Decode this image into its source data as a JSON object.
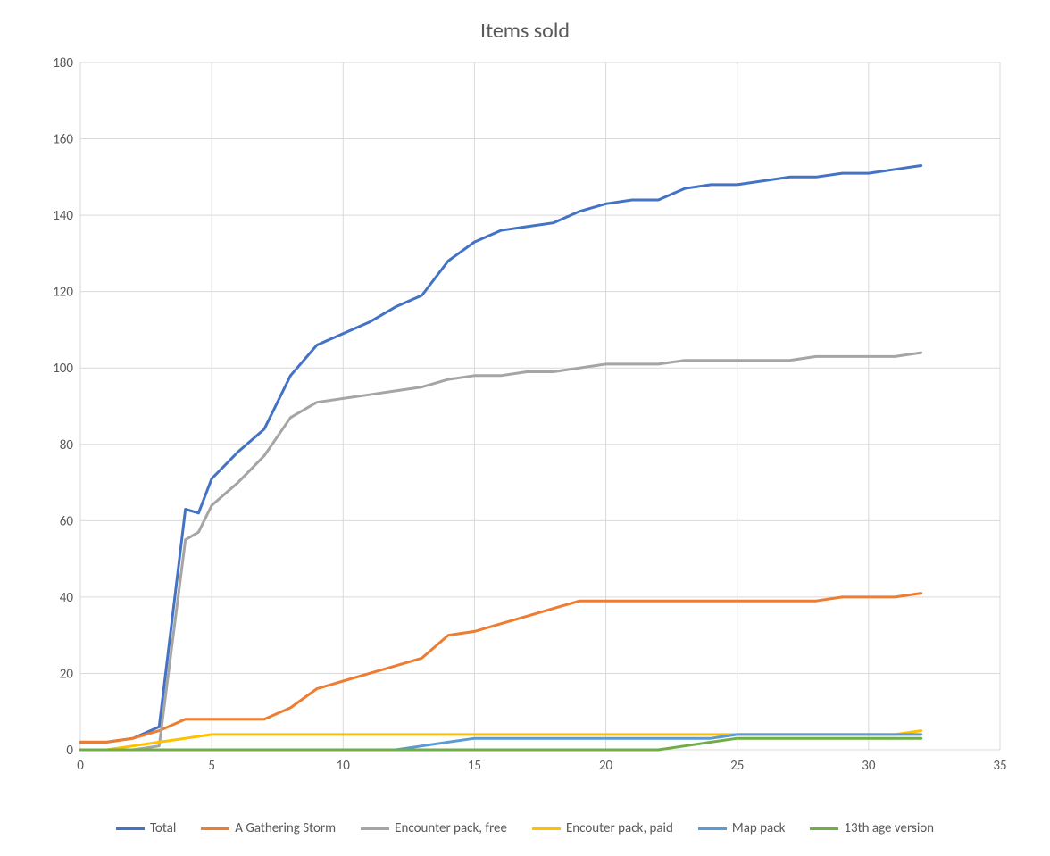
{
  "chart": {
    "type": "line",
    "title": "Items sold",
    "title_fontsize": 24,
    "title_color": "#595959",
    "background_color": "#ffffff",
    "plot_bg": "#ffffff",
    "grid_color": "#d9d9d9",
    "axis_label_color": "#595959",
    "axis_label_fontsize": 15,
    "line_width": 3,
    "xlim": [
      0,
      35
    ],
    "ylim": [
      0,
      180
    ],
    "xtick_step": 5,
    "ytick_step": 20,
    "xticks": [
      0,
      5,
      10,
      15,
      20,
      25,
      30,
      35
    ],
    "yticks": [
      0,
      20,
      40,
      60,
      80,
      100,
      120,
      140,
      160,
      180
    ],
    "x": [
      0,
      1,
      2,
      3,
      4,
      4.5,
      5,
      6,
      7,
      8,
      9,
      10,
      11,
      12,
      13,
      14,
      15,
      16,
      17,
      18,
      19,
      20,
      21,
      22,
      23,
      24,
      25,
      26,
      27,
      28,
      29,
      30,
      31,
      32
    ],
    "series": [
      {
        "name": "Total",
        "color": "#4472c4",
        "values": [
          2,
          2,
          3,
          6,
          63,
          62,
          71,
          78,
          84,
          98,
          106,
          109,
          112,
          116,
          119,
          128,
          133,
          136,
          137,
          138,
          141,
          143,
          144,
          144,
          147,
          148,
          148,
          149,
          150,
          150,
          151,
          151,
          152,
          153
        ]
      },
      {
        "name": "A Gathering Storm",
        "color": "#ed7d31",
        "values": [
          2,
          2,
          3,
          5,
          8,
          8,
          8,
          8,
          8,
          11,
          16,
          18,
          20,
          22,
          24,
          30,
          31,
          33,
          35,
          37,
          39,
          39,
          39,
          39,
          39,
          39,
          39,
          39,
          39,
          39,
          40,
          40,
          40,
          41
        ]
      },
      {
        "name": "Encounter pack, free",
        "color": "#a5a5a5",
        "values": [
          0,
          0,
          0,
          1,
          55,
          57,
          64,
          70,
          77,
          87,
          91,
          92,
          93,
          94,
          95,
          97,
          98,
          98,
          99,
          99,
          100,
          101,
          101,
          101,
          102,
          102,
          102,
          102,
          102,
          103,
          103,
          103,
          103,
          104
        ]
      },
      {
        "name": "Encouter pack, paid",
        "color": "#ffc000",
        "values": [
          0,
          0,
          1,
          2,
          3,
          3.5,
          4,
          4,
          4,
          4,
          4,
          4,
          4,
          4,
          4,
          4,
          4,
          4,
          4,
          4,
          4,
          4,
          4,
          4,
          4,
          4,
          4,
          4,
          4,
          4,
          4,
          4,
          4,
          5
        ]
      },
      {
        "name": "Map pack",
        "color": "#5b9bd5",
        "values": [
          0,
          0,
          0,
          0,
          0,
          0,
          0,
          0,
          0,
          0,
          0,
          0,
          0,
          0,
          1,
          2,
          3,
          3,
          3,
          3,
          3,
          3,
          3,
          3,
          3,
          3,
          4,
          4,
          4,
          4,
          4,
          4,
          4,
          4
        ]
      },
      {
        "name": "13th age version",
        "color": "#70ad47",
        "values": [
          0,
          0,
          0,
          0,
          0,
          0,
          0,
          0,
          0,
          0,
          0,
          0,
          0,
          0,
          0,
          0,
          0,
          0,
          0,
          0,
          0,
          0,
          0,
          0,
          1,
          2,
          3,
          3,
          3,
          3,
          3,
          3,
          3,
          3
        ]
      }
    ],
    "legend_position": "bottom"
  }
}
